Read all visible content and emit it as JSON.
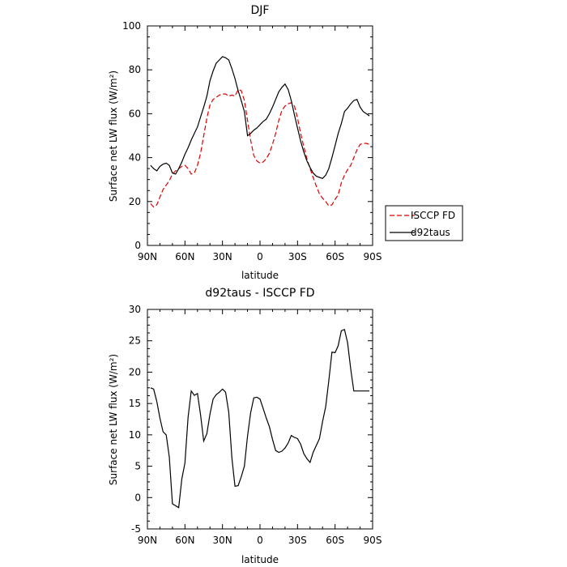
{
  "chart_data": [
    {
      "type": "line",
      "title": "DJF",
      "xlabel": "latitude",
      "ylabel": "Surface net LW flux (W/m²)",
      "xlim": [
        90,
        -90
      ],
      "ylim": [
        0,
        100
      ],
      "x_ticks": [
        {
          "value": 90,
          "label": "90N"
        },
        {
          "value": 60,
          "label": "60N"
        },
        {
          "value": 30,
          "label": "30N"
        },
        {
          "value": 0,
          "label": "0"
        },
        {
          "value": -30,
          "label": "30S"
        },
        {
          "value": -60,
          "label": "60S"
        },
        {
          "value": -90,
          "label": "90S"
        }
      ],
      "y_ticks": [
        0,
        20,
        40,
        60,
        80,
        100
      ],
      "legend": {
        "placement": "right"
      },
      "series": [
        {
          "name": "ISCCP FD",
          "color": "#e00000",
          "dash": "dashed",
          "x": [
            87.5,
            85,
            82.5,
            80,
            77.5,
            75,
            72.5,
            70,
            67.5,
            65,
            62.5,
            60,
            57.5,
            55,
            52.5,
            50,
            47.5,
            45,
            42.5,
            40,
            37.5,
            35,
            32.5,
            30,
            27.5,
            25,
            22.5,
            20,
            17.5,
            15,
            12.5,
            10,
            7.5,
            5,
            2.5,
            0,
            -2.5,
            -5,
            -7.5,
            -10,
            -12.5,
            -15,
            -17.5,
            -20,
            -22.5,
            -25,
            -27.5,
            -30,
            -32.5,
            -35,
            -37.5,
            -40,
            -42.5,
            -45,
            -47.5,
            -50,
            -52.5,
            -55,
            -57.5,
            -60,
            -62.5,
            -65,
            -67.5,
            -70,
            -72.5,
            -75,
            -77.5,
            -80,
            -82.5,
            -85,
            -87.5
          ],
          "y": [
            19,
            17.5,
            18.5,
            22,
            25.5,
            27.5,
            29.5,
            32.5,
            34,
            35,
            36,
            36.5,
            35,
            32.5,
            33,
            36.5,
            42,
            50,
            58,
            64,
            66.5,
            67.5,
            68.5,
            69,
            69,
            68,
            68.5,
            68,
            71,
            70.5,
            66,
            57,
            48,
            41,
            38.5,
            37.5,
            38,
            39.5,
            42,
            46,
            51,
            57,
            61.5,
            63.5,
            64.5,
            65,
            63.5,
            58,
            51,
            45,
            39.5,
            35,
            31,
            27,
            23.5,
            21.5,
            20,
            18,
            18.5,
            21,
            23,
            28.5,
            32,
            34.5,
            36.5,
            40,
            43.5,
            46,
            46.5,
            46.5,
            46
          ]
        },
        {
          "name": "d92taus",
          "color": "#000000",
          "dash": "solid",
          "x": [
            87.5,
            85,
            82.5,
            80,
            77.5,
            75,
            72.5,
            70,
            67.5,
            65,
            62.5,
            60,
            57.5,
            55,
            52.5,
            50,
            47.5,
            45,
            42.5,
            40,
            37.5,
            35,
            32.5,
            30,
            27.5,
            25,
            22.5,
            20,
            17.5,
            15,
            12.5,
            10,
            7.5,
            5,
            2.5,
            0,
            -2.5,
            -5,
            -7.5,
            -10,
            -12.5,
            -15,
            -17.5,
            -20,
            -22.5,
            -25,
            -27.5,
            -30,
            -32.5,
            -35,
            -37.5,
            -40,
            -42.5,
            -45,
            -47.5,
            -50,
            -52.5,
            -55,
            -57.5,
            -60,
            -62.5,
            -65,
            -67.5,
            -70,
            -72.5,
            -75,
            -77.5,
            -80,
            -82.5,
            -85,
            -87.5
          ],
          "y": [
            36.5,
            35,
            34,
            36,
            37,
            37.5,
            36.5,
            33,
            32.5,
            35,
            38,
            41.5,
            44.5,
            48,
            51,
            54,
            58.5,
            63,
            68,
            75,
            79.5,
            83,
            84.5,
            86,
            85.5,
            84.5,
            80.5,
            76,
            70.5,
            66,
            61,
            50,
            51,
            52.5,
            53.5,
            55,
            56.5,
            57.5,
            60,
            63,
            66.5,
            70,
            72,
            73.5,
            71,
            66,
            59.5,
            53.5,
            47.5,
            42.5,
            38.5,
            35.5,
            33,
            31.5,
            31,
            30.5,
            32,
            35,
            40,
            45.5,
            51,
            55.5,
            61,
            62.5,
            64.5,
            66,
            66.5,
            63,
            61,
            60,
            59
          ]
        }
      ]
    },
    {
      "type": "line",
      "title": "d92taus - ISCCP FD",
      "xlabel": "latitude",
      "ylabel": "Surface net LW flux (W/m²)",
      "xlim": [
        90,
        -90
      ],
      "ylim": [
        -5,
        30
      ],
      "x_ticks": [
        {
          "value": 90,
          "label": "90N"
        },
        {
          "value": 60,
          "label": "60N"
        },
        {
          "value": 30,
          "label": "30N"
        },
        {
          "value": 0,
          "label": "0"
        },
        {
          "value": -30,
          "label": "30S"
        },
        {
          "value": -60,
          "label": "60S"
        },
        {
          "value": -90,
          "label": "90S"
        }
      ],
      "y_ticks": [
        -5,
        0,
        5,
        10,
        15,
        20,
        25,
        30
      ],
      "series": [
        {
          "color": "#000000",
          "dash": "solid",
          "x": [
            87.5,
            85,
            82.5,
            80,
            77.5,
            75,
            72.5,
            70,
            67.5,
            65,
            62.5,
            60,
            57.5,
            55,
            52.5,
            50,
            47.5,
            45,
            42.5,
            40,
            37.5,
            35,
            32.5,
            30,
            27.5,
            25,
            22.5,
            20,
            17.5,
            15,
            12.5,
            10,
            7.5,
            5,
            2.5,
            0,
            -2.5,
            -5,
            -7.5,
            -10,
            -12.5,
            -15,
            -17.5,
            -20,
            -22.5,
            -25,
            -27.5,
            -30,
            -32.5,
            -35,
            -37.5,
            -40,
            -42.5,
            -45,
            -47.5,
            -50,
            -52.5,
            -55,
            -57.5,
            -60,
            -62.5,
            -65,
            -67.5,
            -70,
            -72.5,
            -75,
            -77.5,
            -80,
            -82.5,
            -85,
            -87.5
          ],
          "y": [
            17.5,
            17.3,
            15.3,
            12.7,
            10.5,
            10,
            6.5,
            -1,
            -1.3,
            -1.6,
            3,
            5.5,
            12.8,
            17,
            16.3,
            16.6,
            13.2,
            9,
            10.2,
            13.3,
            15.7,
            16.4,
            16.8,
            17.3,
            16.8,
            13.6,
            6.3,
            1.8,
            1.9,
            3.3,
            5,
            9.8,
            13.5,
            15.9,
            16,
            15.7,
            14.2,
            12.7,
            11.3,
            9.3,
            7.5,
            7.2,
            7.4,
            7.9,
            8.7,
            9.9,
            9.6,
            9.4,
            8.5,
            7,
            6.2,
            5.6,
            7.2,
            8.3,
            9.4,
            12.1,
            14.5,
            18.6,
            23.2,
            23.1,
            24.2,
            26.6,
            26.8,
            24.7,
            20.5,
            17,
            17,
            17,
            17,
            17,
            17
          ]
        }
      ]
    }
  ]
}
